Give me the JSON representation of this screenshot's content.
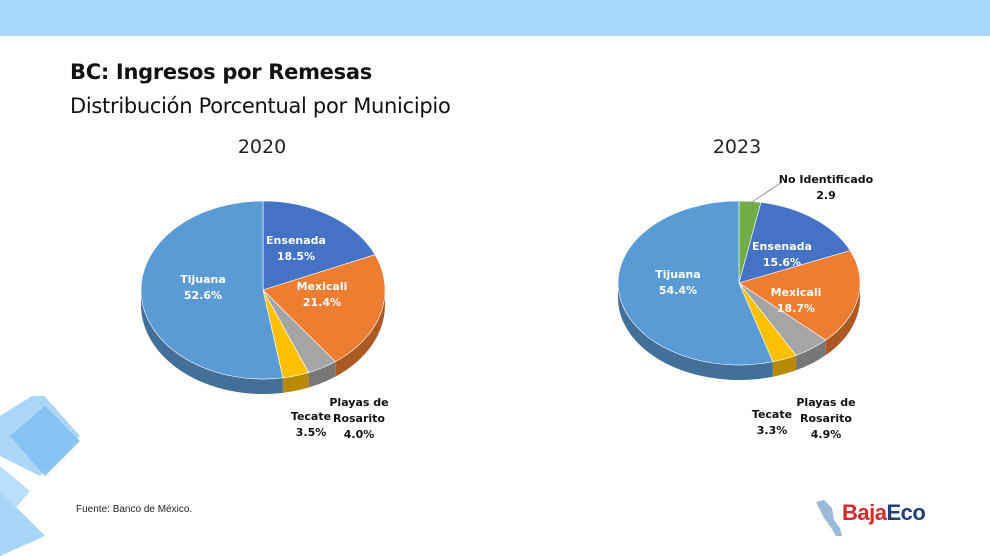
{
  "header": {
    "title": "BC: Ingresos por Remesas",
    "subtitle": "Distribución Porcentual por Municipio"
  },
  "footer": {
    "source": "Fuente: Banco de México.",
    "logo_part1": "Baja",
    "logo_part2": "Eco"
  },
  "colors": {
    "band": "#a6d8fb",
    "Tijuana": "#5b9bd5",
    "Ensenada": "#4472c4",
    "Mexicali": "#ed7d31",
    "Playas de Rosarito": "#a5a5a5",
    "Tecate": "#ffc000",
    "No Identificado": "#70ad47"
  },
  "chart_data": [
    {
      "type": "pie",
      "title": "2020",
      "labels": [
        "Ensenada",
        "Mexicali",
        "Playas de Rosarito",
        "Tecate",
        "Tijuana"
      ],
      "values": [
        18.5,
        21.4,
        4.0,
        3.5,
        52.6
      ],
      "label_texts": [
        [
          "Ensenada",
          "18.5%"
        ],
        [
          "Mexicali",
          "21.4%"
        ],
        [
          "Playas de",
          "Rosarito",
          "4.0%"
        ],
        [
          "Tecate",
          "3.5%"
        ],
        [
          "Tijuana",
          "52.6%"
        ]
      ]
    },
    {
      "type": "pie",
      "title": "2023",
      "labels": [
        "No Identificado",
        "Ensenada",
        "Mexicali",
        "Playas de Rosarito",
        "Tecate",
        "Tijuana"
      ],
      "values": [
        2.9,
        15.6,
        18.7,
        4.9,
        3.3,
        54.4
      ],
      "label_texts": [
        [
          "No Identificado",
          "2.9"
        ],
        [
          "Ensenada",
          "15.6%"
        ],
        [
          "Mexicali",
          "18.7%"
        ],
        [
          "Playas de",
          "Rosarito",
          "4.9%"
        ],
        [
          "Tecate",
          "3.3%"
        ],
        [
          "Tijuana",
          "54.4%"
        ]
      ]
    }
  ]
}
